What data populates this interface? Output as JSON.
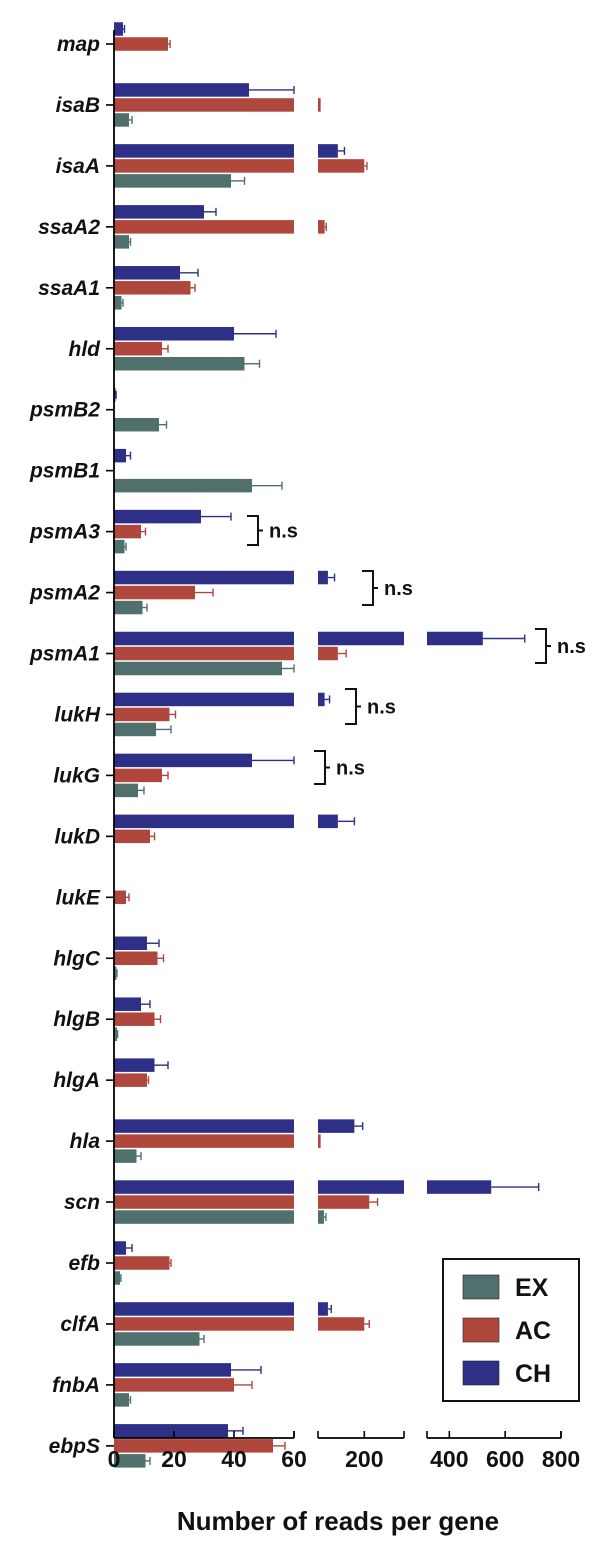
{
  "chart_data": {
    "type": "bar",
    "orientation": "horizontal",
    "xlabel": "Number of reads per gene",
    "ylabel": "",
    "title": "",
    "categories": [
      "map",
      "isaB",
      "isaA",
      "ssaA2",
      "ssaA1",
      "hld",
      "psmB2",
      "psmB1",
      "psmA3",
      "psmA2",
      "psmA1",
      "lukH",
      "lukG",
      "lukD",
      "lukE",
      "hlgC",
      "hlgB",
      "hlgA",
      "hla",
      "scn",
      "efb",
      "clfA",
      "fnbA",
      "ebpS"
    ],
    "series": [
      {
        "name": "CH",
        "color": "#2e2f87",
        "values": [
          3,
          45,
          120,
          30,
          22,
          40,
          0.5,
          4,
          29,
          90,
          520,
          80,
          46,
          120,
          null,
          11,
          9,
          13.5,
          170,
          550,
          4,
          90,
          39,
          38
        ],
        "errors": [
          0.5,
          15,
          20,
          4,
          6,
          14,
          0.2,
          1.5,
          10,
          20,
          150,
          15,
          14,
          50,
          null,
          4,
          3,
          4.5,
          25,
          170,
          2,
          10,
          10,
          5
        ]
      },
      {
        "name": "AC",
        "color": "#b0473d",
        "values": [
          18,
          68,
          200,
          80,
          25.5,
          16,
          null,
          null,
          9,
          27,
          120,
          18.5,
          16,
          12,
          4,
          14.5,
          13.5,
          11,
          68,
          215,
          18.5,
          200,
          40,
          53
        ],
        "errors": [
          0.7,
          1,
          8,
          5,
          1.5,
          2,
          null,
          null,
          1.5,
          6,
          25,
          2,
          2,
          1.5,
          1,
          2,
          2,
          0.5,
          1,
          25,
          0.5,
          15,
          6,
          4
        ]
      },
      {
        "name": "EX",
        "color": "#4f706c",
        "values": [
          null,
          5,
          39,
          5,
          2.5,
          43.5,
          15,
          46,
          3.5,
          9.5,
          56,
          14,
          8,
          null,
          null,
          0.8,
          1,
          null,
          7.5,
          78,
          2,
          28.5,
          5,
          10.5
        ],
        "errors": [
          null,
          1,
          4.5,
          0.5,
          0.5,
          5,
          2.5,
          10,
          0.5,
          1.5,
          4,
          5,
          2,
          null,
          null,
          0.2,
          0.2,
          null,
          1.5,
          6,
          0.3,
          1.5,
          0.5,
          1.5
        ]
      }
    ],
    "x_axis": {
      "segments": [
        {
          "range": [
            0,
            60
          ],
          "ticks": [
            0,
            20,
            40,
            60
          ]
        },
        {
          "range": [
            60,
            320
          ],
          "ticks": [
            200
          ]
        },
        {
          "range": [
            320,
            800
          ],
          "ticks": [
            400,
            600,
            800
          ]
        }
      ],
      "tick_labels": [
        "0",
        "20",
        "40",
        "60",
        "200",
        "400",
        "600",
        "800"
      ]
    },
    "annotations": [
      {
        "text": "n.s",
        "categories": [
          "psmA3"
        ]
      },
      {
        "text": "n.s",
        "categories": [
          "psmA2"
        ]
      },
      {
        "text": "n.s",
        "categories": [
          "psmA1"
        ]
      },
      {
        "text": "n.s",
        "categories": [
          "lukH"
        ]
      },
      {
        "text": "n.s",
        "categories": [
          "lukG"
        ]
      }
    ],
    "legend": {
      "placement": "bottom-right",
      "entries": [
        "EX",
        "AC",
        "CH"
      ]
    },
    "grid": false
  }
}
